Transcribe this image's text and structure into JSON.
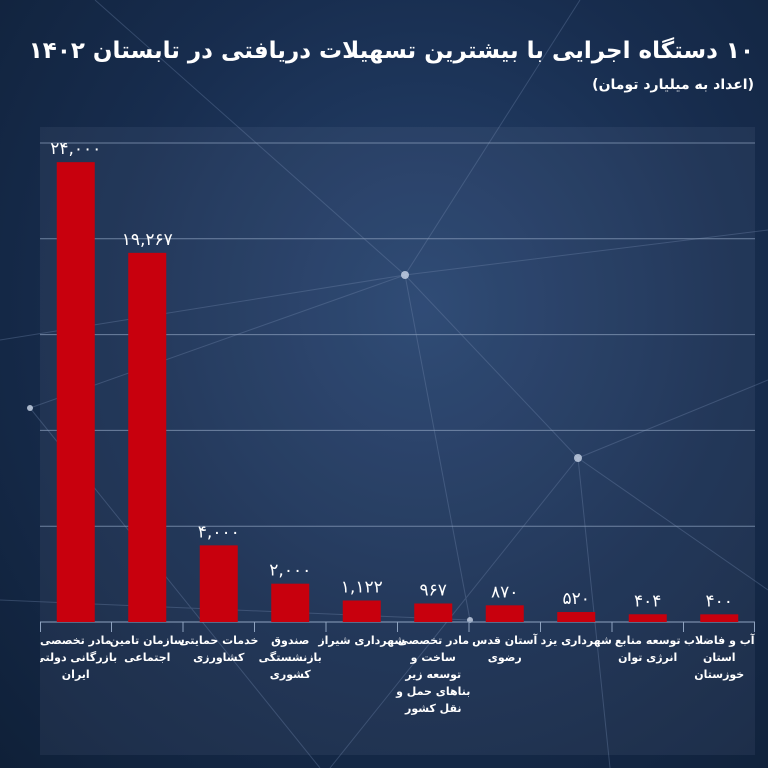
{
  "title": "۱۰ دستگاه اجرایی با بیشترین تسهیلات دریافتی در تابستان ۱۴۰۲",
  "subtitle": "(اعداد به میلیارد تومان)",
  "colors": {
    "bar": "#c8000d",
    "grid": "#8ea2bf",
    "text": "#ffffff"
  },
  "chart_data": {
    "type": "bar",
    "title": "۱۰ دستگاه اجرایی با بیشترین تسهیلات دریافتی در تابستان ۱۴۰۲",
    "subtitle": "(اعداد به میلیارد تومان)",
    "ylim": [
      0,
      25000
    ],
    "grid": true,
    "categories": [
      [
        "مادر تخصصی",
        "بازرگانی دولتی",
        "ایران"
      ],
      [
        "سازمان تامین",
        "اجتماعی"
      ],
      [
        "خدمات حمایتی",
        "کشاورزی"
      ],
      [
        "صندوق",
        "بازنشستگی",
        "کشوری"
      ],
      [
        "شهرداری شیراز"
      ],
      [
        "مادر تخصصی",
        "ساخت و",
        "توسعه زیر",
        "بناهای حمل و",
        "نقل کشور"
      ],
      [
        "آستان قدس",
        "رضوی"
      ],
      [
        "شهرداری یزد"
      ],
      [
        "توسعه منابع",
        "انرژی توان"
      ],
      [
        "آب و فاضلاب",
        "استان",
        "خوزستان"
      ]
    ],
    "values": [
      24000,
      19267,
      4000,
      2000,
      1122,
      967,
      870,
      520,
      404,
      400
    ],
    "value_labels": [
      "۲۴,۰۰۰",
      "۱۹,۲۶۷",
      "۴,۰۰۰",
      "۲,۰۰۰",
      "۱,۱۲۲",
      "۹۶۷",
      "۸۷۰",
      "۵۲۰",
      "۴۰۴",
      "۴۰۰"
    ]
  }
}
